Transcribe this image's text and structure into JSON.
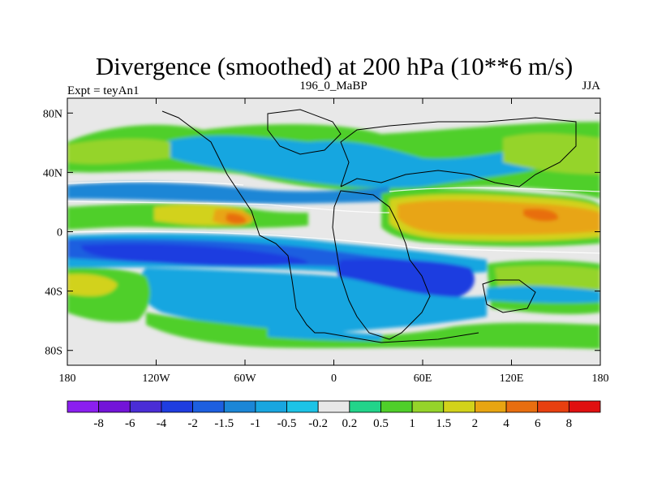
{
  "chart_data": {
    "type": "heatmap",
    "title": "Divergence (smoothed) at 200 hPa (10**6 m/s)",
    "left_label": "Expt = teyAn1",
    "center_label": "196_0_MaBP",
    "right_label": "JJA",
    "x_ticks": [
      "180",
      "120W",
      "60W",
      "0",
      "60E",
      "120E",
      "180"
    ],
    "y_ticks": [
      "80N",
      "40N",
      "0",
      "40S",
      "80S"
    ],
    "x_tick_values": [
      -180,
      -120,
      -60,
      0,
      60,
      120,
      180
    ],
    "y_tick_values": [
      80,
      40,
      0,
      -40,
      -80
    ],
    "xlim": [
      -180,
      180
    ],
    "ylim": [
      -90,
      90
    ],
    "colorbar": {
      "labels": [
        "-8",
        "-6",
        "-4",
        "-2",
        "-1.5",
        "-1",
        "-0.5",
        "-0.2",
        "0.2",
        "0.5",
        "1",
        "1.5",
        "2",
        "4",
        "6",
        "8"
      ],
      "colors": [
        "#8b1ff0",
        "#7314d8",
        "#4a2dd6",
        "#1f3de0",
        "#1d5fe0",
        "#1b86d6",
        "#18a6e0",
        "#1cc3e6",
        "#e8e8e8",
        "#22d48a",
        "#4fcf2a",
        "#95d42a",
        "#d2d21a",
        "#e8a512",
        "#e86e10",
        "#e84010",
        "#e01010"
      ]
    }
  }
}
